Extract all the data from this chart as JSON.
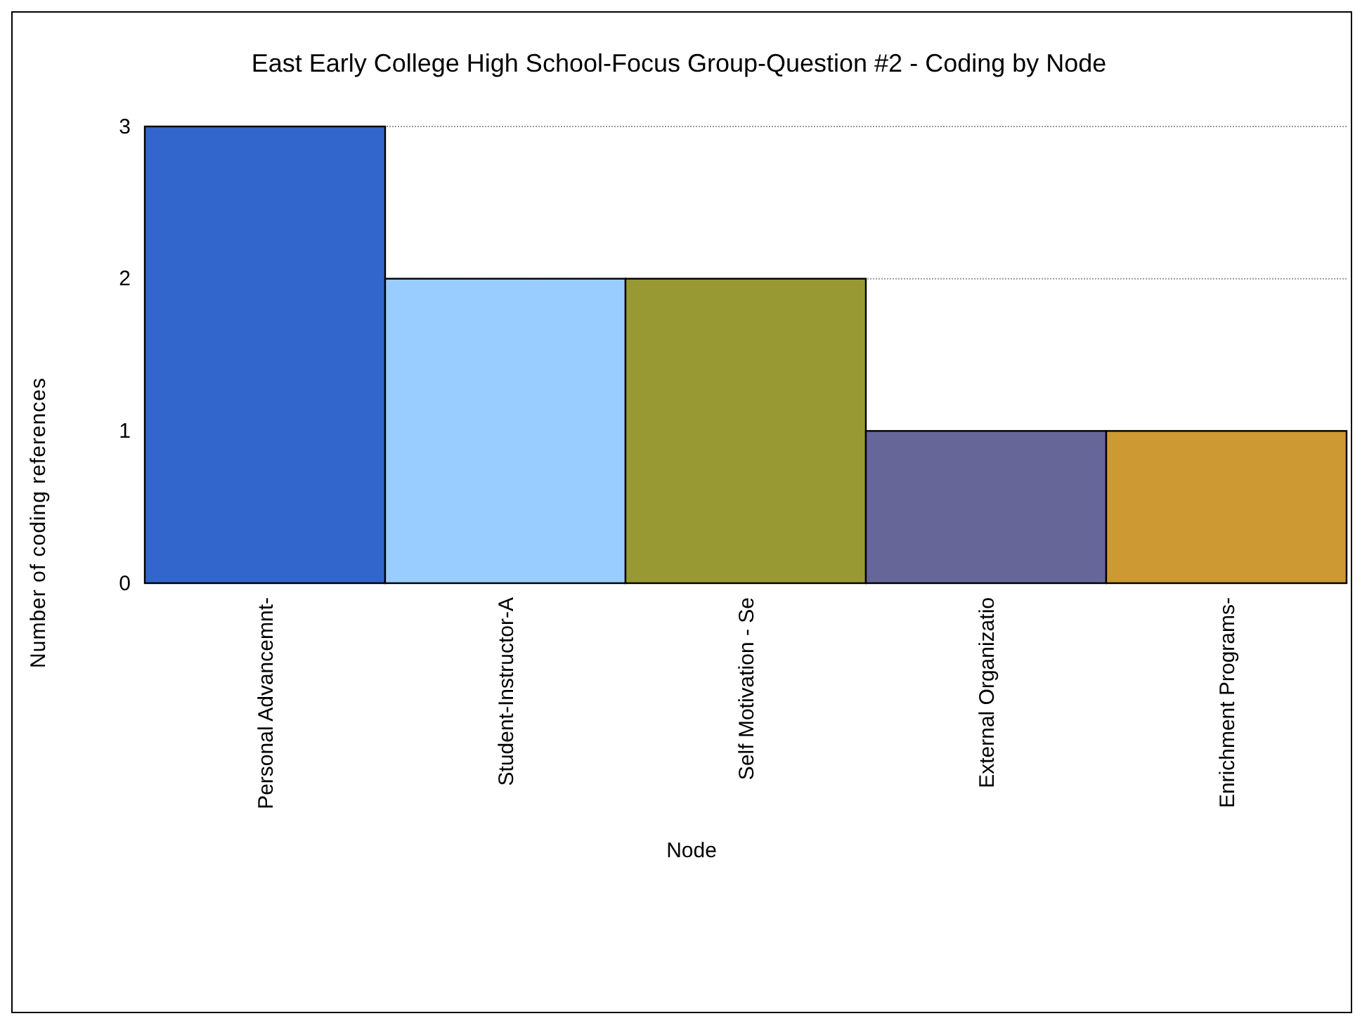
{
  "chart_data": {
    "type": "bar",
    "title": "East Early College High School-Focus Group-Question #2 - Coding by Node",
    "xlabel": "Node",
    "ylabel": "Number of coding references",
    "categories": [
      "Personal Advancemnt-",
      "Student-Instructor-A",
      "Self Motivation - Se",
      "External Organizatio",
      "Enrichment Programs-"
    ],
    "values": [
      3,
      2,
      2,
      1,
      1
    ],
    "colors": [
      "#3366cc",
      "#99ccff",
      "#999933",
      "#666699",
      "#cc9933"
    ],
    "ylim": [
      0,
      3
    ],
    "yticks": [
      0,
      1,
      2,
      3
    ],
    "grid": "y"
  }
}
